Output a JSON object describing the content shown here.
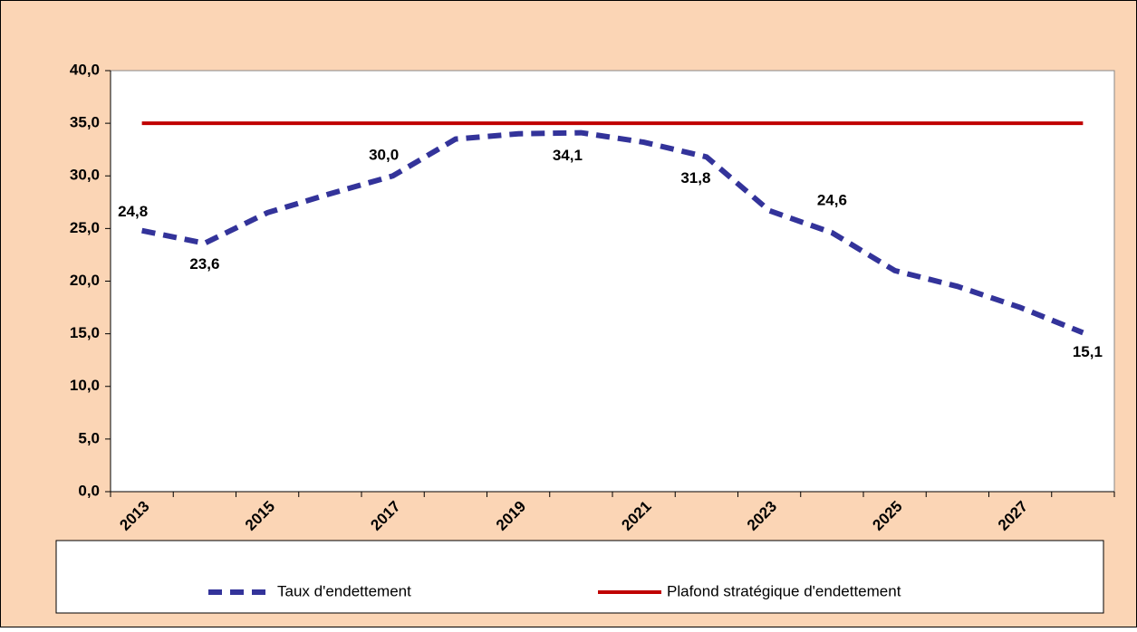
{
  "chart_data": {
    "type": "line",
    "categories": [
      "2013",
      null,
      "2015",
      null,
      "2017",
      null,
      "2019",
      null,
      "2021",
      null,
      "2023",
      null,
      "2025",
      null,
      "2027",
      null
    ],
    "series": [
      {
        "name": "Taux d'endettement",
        "color": "#33339a",
        "dashed": true,
        "values": [
          24.8,
          23.6,
          26.5,
          28.3,
          30.0,
          33.5,
          34.0,
          34.1,
          33.2,
          31.8,
          26.7,
          24.6,
          21.0,
          19.5,
          17.5,
          15.1
        ],
        "value_labels": [
          "24,8",
          "23,6",
          null,
          null,
          "30,0",
          null,
          null,
          "34,1",
          null,
          "31,8",
          null,
          "24,6",
          null,
          null,
          null,
          "15,1"
        ]
      },
      {
        "name": "Plafond stratégique d'endettement",
        "color": "#c00000",
        "dashed": false,
        "values": [
          35,
          35,
          35,
          35,
          35,
          35,
          35,
          35,
          35,
          35,
          35,
          35,
          35,
          35,
          35,
          35
        ]
      }
    ],
    "ylim": [
      0,
      40
    ],
    "yticks": [
      {
        "value": 0,
        "label": "0,0"
      },
      {
        "value": 5,
        "label": "5,0"
      },
      {
        "value": 10,
        "label": "10,0"
      },
      {
        "value": 15,
        "label": "15,0"
      },
      {
        "value": 20,
        "label": "20,0"
      },
      {
        "value": 25,
        "label": "25,0"
      },
      {
        "value": 30,
        "label": "30,0"
      },
      {
        "value": 35,
        "label": "35,0"
      },
      {
        "value": 40,
        "label": "40,0"
      }
    ],
    "grid": false,
    "legend": "bottom"
  }
}
